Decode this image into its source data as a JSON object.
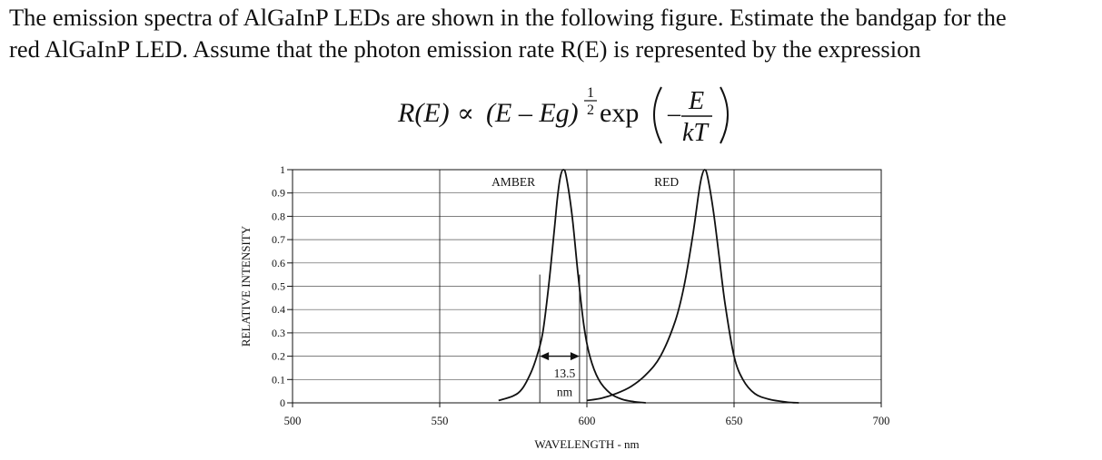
{
  "problem": {
    "line1": "The emission spectra of AlGaInP LEDs are shown in the following figure. Estimate the bandgap for the",
    "line2": "red AlGaInP LED. Assume that the photon emission rate R(E) is represented by the expression"
  },
  "equation": {
    "lhs": "R(E)",
    "relation": "∝",
    "base": "(E – Eg)",
    "exponent_num": "1",
    "exponent_den": "2",
    "func": "exp",
    "minus": "–",
    "frac_num": "E",
    "frac_den": "kT"
  },
  "chart_data": {
    "type": "line",
    "xlabel": "WAVELENGTH - nm",
    "ylabel": "RELATIVE INTENSITY",
    "xlim": [
      500,
      700
    ],
    "ylim": [
      0,
      1
    ],
    "x_ticks": [
      "500",
      "550",
      "600",
      "650",
      "700"
    ],
    "y_ticks": [
      "0",
      "0.1",
      "0.2",
      "0.3",
      "0.4",
      "0.5",
      "0.6",
      "0.7",
      "0.8",
      "0.9",
      "1"
    ],
    "grid": true,
    "series": [
      {
        "name": "AMBER",
        "x": [
          570,
          575,
          578,
          581,
          583,
          585,
          587,
          589,
          590,
          591,
          592,
          593,
          595,
          597,
          599,
          601,
          604,
          608,
          612,
          616,
          620
        ],
        "y": [
          0.01,
          0.03,
          0.06,
          0.13,
          0.2,
          0.3,
          0.5,
          0.75,
          0.88,
          0.97,
          1.0,
          0.97,
          0.8,
          0.55,
          0.33,
          0.2,
          0.1,
          0.04,
          0.015,
          0.005,
          0
        ]
      },
      {
        "name": "RED",
        "x": [
          600,
          605,
          610,
          615,
          620,
          625,
          630,
          633,
          636,
          638,
          639,
          640,
          641,
          643,
          645,
          647,
          650,
          653,
          657,
          662,
          668,
          672
        ],
        "y": [
          0.01,
          0.02,
          0.04,
          0.07,
          0.12,
          0.2,
          0.35,
          0.5,
          0.72,
          0.9,
          0.97,
          1.0,
          0.97,
          0.82,
          0.62,
          0.42,
          0.2,
          0.1,
          0.04,
          0.015,
          0.003,
          0
        ]
      }
    ],
    "annotations": [
      {
        "text": "13.5",
        "x": 591.5,
        "y": 0.12
      },
      {
        "text": "nm",
        "x": 591.5,
        "y": 0.04
      }
    ],
    "width_marker": {
      "x1": 584,
      "x2": 597.5,
      "y": 0.2
    }
  }
}
